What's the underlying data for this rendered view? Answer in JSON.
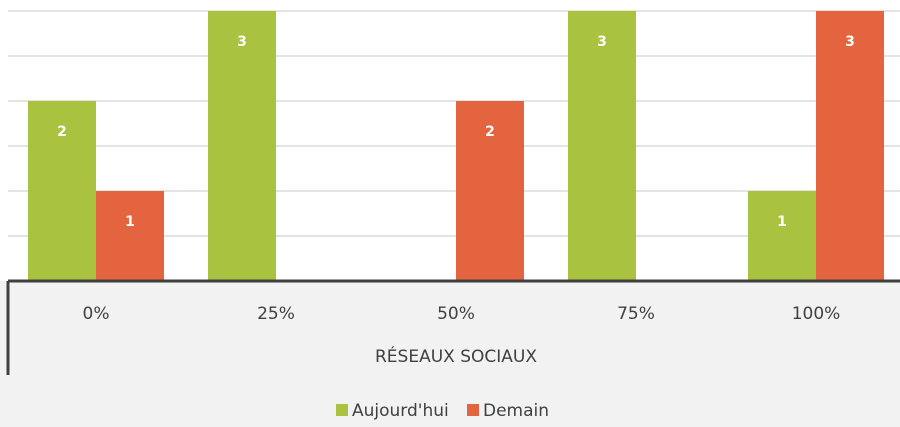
{
  "chart_data": {
    "type": "bar",
    "categories": [
      "0%",
      "25%",
      "50%",
      "75%",
      "100%"
    ],
    "series": [
      {
        "name": "Aujourd'hui",
        "color": "#a9c23f",
        "values": [
          2,
          3,
          null,
          3,
          1
        ]
      },
      {
        "name": "Demain",
        "color": "#e4643f",
        "values": [
          1,
          null,
          2,
          null,
          3
        ]
      }
    ],
    "xlabel": "RÉSEAUX SOCIAUX",
    "ylim": [
      0,
      3
    ],
    "yticks": [
      0,
      0.5,
      1,
      1.5,
      2,
      2.5,
      3
    ],
    "grid": true,
    "legend": "bottom"
  }
}
